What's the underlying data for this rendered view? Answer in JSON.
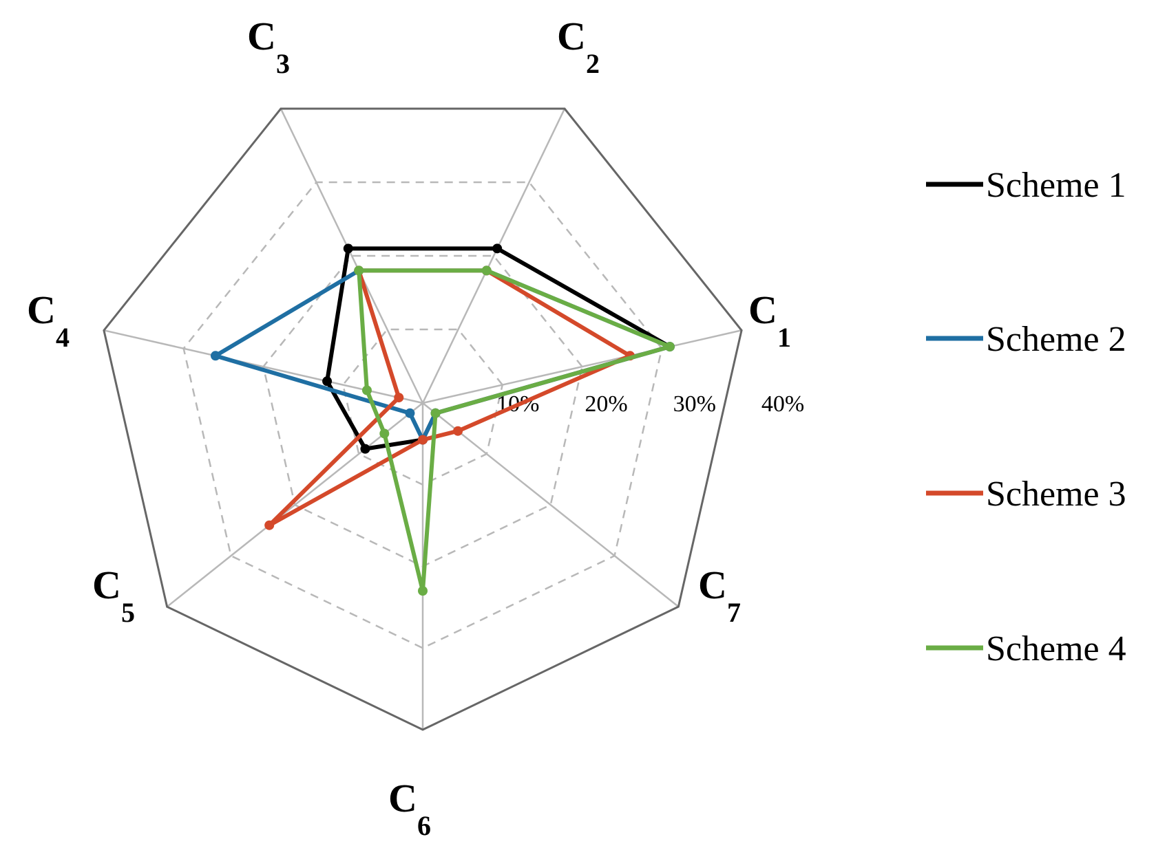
{
  "chart_data": {
    "type": "radar",
    "title": "",
    "axes": [
      {
        "main": "C",
        "sub": "1"
      },
      {
        "main": "C",
        "sub": "2"
      },
      {
        "main": "C",
        "sub": "3"
      },
      {
        "main": "C",
        "sub": "4"
      },
      {
        "main": "C",
        "sub": "5"
      },
      {
        "main": "C",
        "sub": "6"
      },
      {
        "main": "C",
        "sub": "7"
      }
    ],
    "rlim": [
      0,
      40
    ],
    "ticks": [
      10,
      20,
      30,
      40
    ],
    "tick_labels": [
      "10%",
      "20%",
      "30%",
      "40%"
    ],
    "grid": true,
    "legend_position": "right",
    "series": [
      {
        "name": "Scheme 1",
        "color": "#000000",
        "values": [
          31.0,
          21.0,
          21.0,
          12.0,
          9.0,
          4.5,
          2.0
        ]
      },
      {
        "name": "Scheme 2",
        "color": "#1f6fa3",
        "values": [
          31.0,
          18.0,
          18.0,
          26.0,
          2.0,
          4.5,
          2.0
        ]
      },
      {
        "name": "Scheme 3",
        "color": "#d4492a",
        "values": [
          26.0,
          18.0,
          18.0,
          3.0,
          24.0,
          4.5,
          5.5
        ]
      },
      {
        "name": "Scheme 4",
        "color": "#6aad45",
        "values": [
          31.0,
          18.0,
          18.0,
          7.0,
          6.0,
          23.0,
          2.0
        ]
      }
    ]
  }
}
